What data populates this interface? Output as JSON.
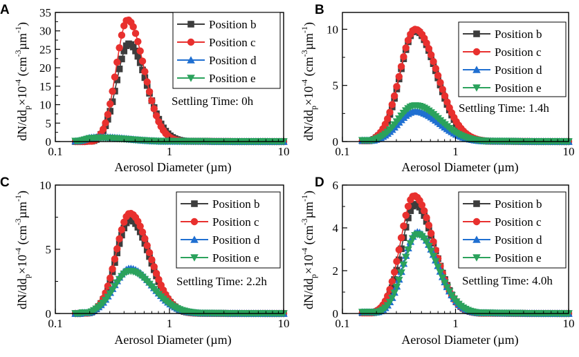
{
  "chart_data": [
    {
      "panel": "A",
      "type": "line",
      "xscale": "log",
      "xlim": [
        0.1,
        10
      ],
      "ylim": [
        0,
        35
      ],
      "xticks": [
        0.1,
        1,
        10
      ],
      "xtick_labels": [
        "0.1",
        "1",
        "10"
      ],
      "yticks": [
        0,
        5,
        10,
        15,
        20,
        25,
        30,
        35
      ],
      "ytick_labels": [
        "0",
        "5",
        "10",
        "15",
        "20",
        "25",
        "30",
        "35"
      ],
      "xlabel": "Aerosol Diameter (µm)",
      "ylabel": "dN/ddp×10⁻⁴ (cm⁻³µm⁻¹)",
      "annotation": "Settling Time: 0h",
      "series": [
        {
          "name": "Position b",
          "color": "#3d3d3d",
          "marker": "square",
          "onset": 0.185,
          "peak_x": 0.44,
          "peak_y": 26.5,
          "width": 0.32,
          "tail": 1.8
        },
        {
          "name": "Position c",
          "color": "#e8302e",
          "marker": "circle",
          "onset": 0.185,
          "peak_x": 0.43,
          "peak_y": 33,
          "width": 0.3,
          "tail": 1.8
        },
        {
          "name": "Position d",
          "color": "#1f6fd1",
          "marker": "triangle-up",
          "onset": 0.15,
          "peak_x": 0.25,
          "peak_y": 1.2,
          "width": 0.5,
          "tail": 0.6
        },
        {
          "name": "Position e",
          "color": "#2ba25c",
          "marker": "triangle-down",
          "onset": 0.15,
          "peak_x": 0.25,
          "peak_y": 1.0,
          "width": 0.5,
          "tail": 0.6
        }
      ]
    },
    {
      "panel": "B",
      "type": "line",
      "xscale": "log",
      "xlim": [
        0.1,
        10
      ],
      "ylim": [
        0,
        11.5
      ],
      "xticks": [
        0.1,
        1,
        10
      ],
      "xtick_labels": [
        "0.1",
        "1",
        "10"
      ],
      "yticks": [
        0,
        5,
        10
      ],
      "ytick_labels": [
        "0",
        "5",
        "10"
      ],
      "xlabel": "Aerosol Diameter (µm)",
      "ylabel": "dN/ddp×10⁻⁴ (cm⁻³µm⁻¹)",
      "annotation": "Settling Time: 1.4h",
      "series": [
        {
          "name": "Position b",
          "color": "#3d3d3d",
          "marker": "square",
          "onset": 0.15,
          "peak_x": 0.44,
          "peak_y": 9.9,
          "width": 0.4,
          "tail": 1.0
        },
        {
          "name": "Position c",
          "color": "#e8302e",
          "marker": "circle",
          "onset": 0.15,
          "peak_x": 0.44,
          "peak_y": 10.0,
          "width": 0.41,
          "tail": 1.1
        },
        {
          "name": "Position d",
          "color": "#1f6fd1",
          "marker": "triangle-up",
          "onset": 0.15,
          "peak_x": 0.44,
          "peak_y": 2.7,
          "width": 0.45,
          "tail": 0.5
        },
        {
          "name": "Position e",
          "color": "#2ba25c",
          "marker": "triangle-down",
          "onset": 0.15,
          "peak_x": 0.44,
          "peak_y": 3.2,
          "width": 0.45,
          "tail": 0.5
        }
      ]
    },
    {
      "panel": "C",
      "type": "line",
      "xscale": "log",
      "xlim": [
        0.1,
        10
      ],
      "ylim": [
        0,
        10
      ],
      "xticks": [
        0.1,
        1,
        10
      ],
      "xtick_labels": [
        "0.1",
        "1",
        "10"
      ],
      "yticks": [
        0,
        5,
        10
      ],
      "ytick_labels": [
        "0",
        "5",
        "10"
      ],
      "xlabel": "Aerosol Diameter (µm)",
      "ylabel": "dN/ddp×10⁻⁴ (cm⁻³µm⁻¹)",
      "annotation": "Settling Time: 2.2h",
      "series": [
        {
          "name": "Position b",
          "color": "#3d3d3d",
          "marker": "square",
          "onset": 0.17,
          "peak_x": 0.45,
          "peak_y": 7.3,
          "width": 0.36,
          "tail": 0.4
        },
        {
          "name": "Position c",
          "color": "#e8302e",
          "marker": "circle",
          "onset": 0.17,
          "peak_x": 0.45,
          "peak_y": 7.8,
          "width": 0.36,
          "tail": 0.4
        },
        {
          "name": "Position d",
          "color": "#1f6fd1",
          "marker": "triangle-up",
          "onset": 0.17,
          "peak_x": 0.45,
          "peak_y": 3.5,
          "width": 0.42,
          "tail": 0.3
        },
        {
          "name": "Position e",
          "color": "#2ba25c",
          "marker": "triangle-down",
          "onset": 0.17,
          "peak_x": 0.45,
          "peak_y": 3.3,
          "width": 0.42,
          "tail": 0.3
        }
      ]
    },
    {
      "panel": "D",
      "type": "line",
      "xscale": "log",
      "xlim": [
        0.1,
        10
      ],
      "ylim": [
        0,
        6
      ],
      "xticks": [
        0.1,
        1,
        10
      ],
      "xtick_labels": [
        "0.1",
        "1",
        "10"
      ],
      "yticks": [
        0,
        2,
        4,
        6
      ],
      "ytick_labels": [
        "0",
        "2",
        "4",
        "6"
      ],
      "xlabel": "Aerosol Diameter (µm)",
      "ylabel": "dN/ddp×10⁻⁴ (cm⁻³µm⁻¹)",
      "annotation": "Settling Time: 4.0h",
      "series": [
        {
          "name": "Position b",
          "color": "#3d3d3d",
          "marker": "square",
          "onset": 0.15,
          "peak_x": 0.44,
          "peak_y": 5.1,
          "width": 0.36,
          "tail": 0.45
        },
        {
          "name": "Position c",
          "color": "#e8302e",
          "marker": "circle",
          "onset": 0.15,
          "peak_x": 0.43,
          "peak_y": 5.5,
          "width": 0.36,
          "tail": 0.45
        },
        {
          "name": "Position d",
          "color": "#1f6fd1",
          "marker": "triangle-up",
          "onset": 0.15,
          "peak_x": 0.46,
          "peak_y": 3.8,
          "width": 0.37,
          "tail": 0.3
        },
        {
          "name": "Position e",
          "color": "#2ba25c",
          "marker": "triangle-down",
          "onset": 0.15,
          "peak_x": 0.46,
          "peak_y": 3.7,
          "width": 0.37,
          "tail": 0.3
        }
      ]
    }
  ]
}
